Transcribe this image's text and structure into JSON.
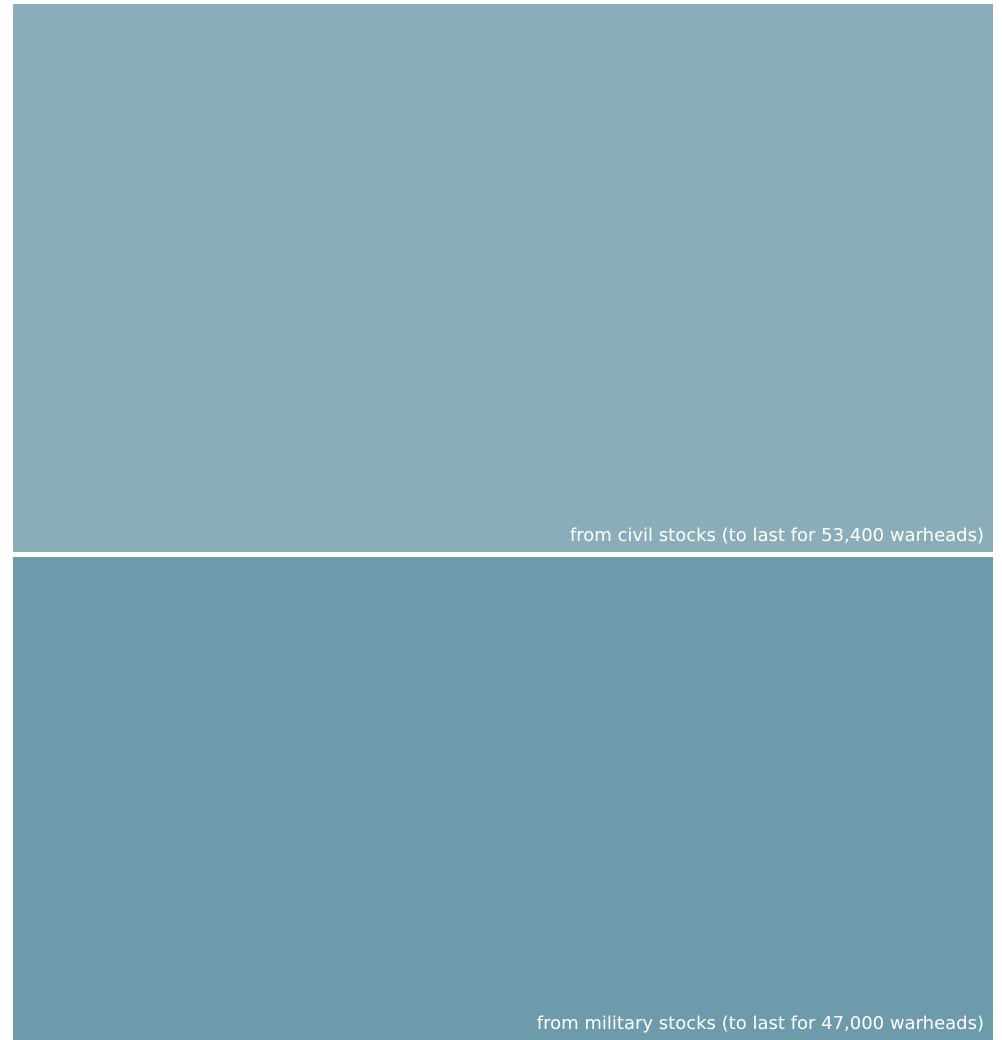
{
  "chart_data": {
    "type": "bar",
    "orientation": "stacked-vertical",
    "categories": [
      "from civil stocks (to last for 53,400 warheads)",
      "from military stocks (to last for 47,000 warheads)"
    ],
    "values": [
      53400,
      47000
    ],
    "colors": [
      "#8badb9",
      "#6e9bab"
    ],
    "segments": [
      {
        "label": "from civil stocks (to last for 53,400 warheads)",
        "value": 53400,
        "color": "#8badb9"
      },
      {
        "label": "from military stocks (to last for 47,000 warheads)",
        "value": 47000,
        "color": "#6e9bab"
      }
    ]
  }
}
